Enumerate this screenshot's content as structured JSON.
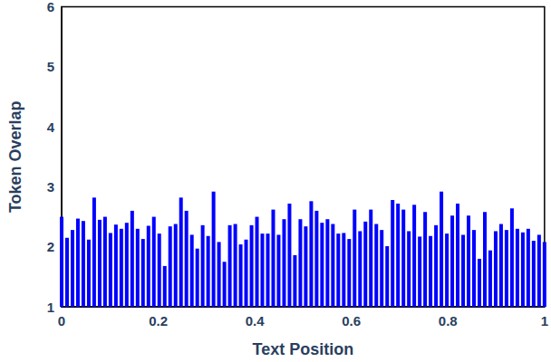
{
  "chart_data": {
    "type": "bar",
    "x_label": "Text Position",
    "y_label": "Token Overlap",
    "x": [
      0,
      0.0112,
      0.0225,
      0.0337,
      0.0449,
      0.0562,
      0.0674,
      0.0787,
      0.0899,
      0.1011,
      0.1124,
      0.1236,
      0.1348,
      0.1461,
      0.1573,
      0.1685,
      0.1798,
      0.191,
      0.2022,
      0.2135,
      0.2247,
      0.236,
      0.2472,
      0.2584,
      0.2697,
      0.2809,
      0.2921,
      0.3034,
      0.3146,
      0.3258,
      0.3371,
      0.3483,
      0.3596,
      0.3708,
      0.382,
      0.3933,
      0.4045,
      0.4157,
      0.427,
      0.4382,
      0.4494,
      0.4607,
      0.4719,
      0.4831,
      0.4944,
      0.5056,
      0.5169,
      0.5281,
      0.5393,
      0.5506,
      0.5618,
      0.573,
      0.5843,
      0.5955,
      0.6067,
      0.618,
      0.6292,
      0.6404,
      0.6517,
      0.6629,
      0.6742,
      0.6854,
      0.6966,
      0.7079,
      0.7191,
      0.7303,
      0.7416,
      0.7528,
      0.764,
      0.7753,
      0.7865,
      0.7978,
      0.809,
      0.8202,
      0.8315,
      0.8427,
      0.8539,
      0.8652,
      0.8764,
      0.8876,
      0.8989,
      0.9101,
      0.9213,
      0.9326,
      0.9438,
      0.9551,
      0.9663,
      0.9775,
      0.9888,
      1
    ],
    "values": [
      2.5,
      2.15,
      2.28,
      2.47,
      2.43,
      2.12,
      2.82,
      2.45,
      2.5,
      2.23,
      2.37,
      2.3,
      2.4,
      2.6,
      2.3,
      2.13,
      2.35,
      2.5,
      2.22,
      1.68,
      2.34,
      2.38,
      2.82,
      2.6,
      2.2,
      1.97,
      2.36,
      2.18,
      2.92,
      2.08,
      1.75,
      2.36,
      2.38,
      2.04,
      2.12,
      2.36,
      2.5,
      2.22,
      2.22,
      2.62,
      2.2,
      2.46,
      2.72,
      1.86,
      2.46,
      2.34,
      2.76,
      2.6,
      2.4,
      2.46,
      2.38,
      2.22,
      2.23,
      2.13,
      2.62,
      2.26,
      2.42,
      2.62,
      2.38,
      2.28,
      2.01,
      2.78,
      2.72,
      2.62,
      2.26,
      2.7,
      2.17,
      2.58,
      2.18,
      2.36,
      2.92,
      2.22,
      2.52,
      2.72,
      2.2,
      2.52,
      2.28,
      1.8,
      2.58,
      1.94,
      2.26,
      2.38,
      2.28,
      2.64,
      2.3,
      2.24,
      2.3,
      2.1,
      2.2,
      2.08
    ],
    "color": "#0000ff",
    "xlim": [
      0,
      1
    ],
    "xticks": [
      0,
      0.2,
      0.4,
      0.6,
      0.8,
      1
    ],
    "ylim": [
      1,
      6
    ],
    "yticks": [
      1,
      2,
      3,
      4,
      5,
      6
    ],
    "grid": false
  }
}
